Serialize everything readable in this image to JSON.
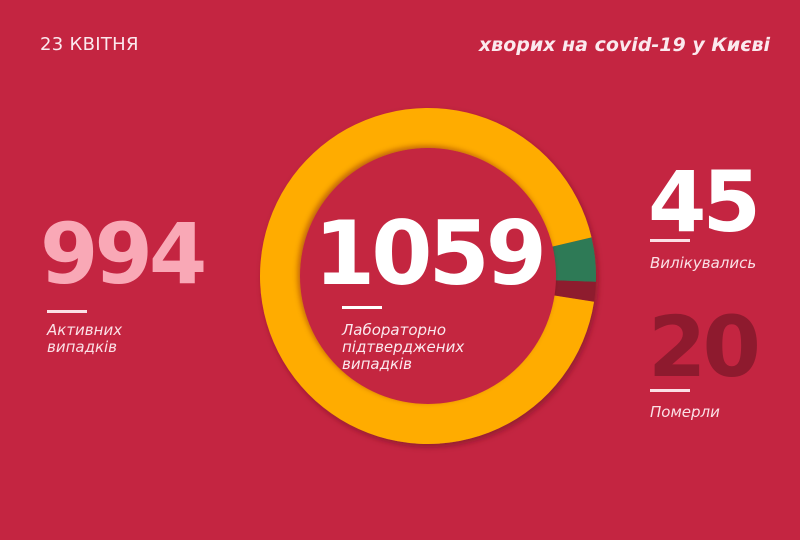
{
  "header": {
    "date": "23 КВІТНЯ",
    "subtitle": "хворих на covid-19 у Києві"
  },
  "stats": {
    "active": {
      "value": "994",
      "label": "Активних випадків",
      "label_lines": [
        "Активних",
        "випадків"
      ]
    },
    "total": {
      "value": "1059",
      "label": "Лабораторно підтверджених випадків",
      "label_lines": [
        "Лабораторно",
        "підтверджених",
        "випадків"
      ]
    },
    "recovered": {
      "value": "45",
      "label": "Вилікувались"
    },
    "deaths": {
      "value": "20",
      "label": "Померли"
    }
  },
  "colors": {
    "background": "#c42541",
    "active": "#ffac00",
    "recovered": "#2e7a57",
    "deaths": "#8e1a2e",
    "active_number": "#f9a8b6"
  },
  "chart_data": {
    "type": "pie",
    "subtype": "donut",
    "title": "хворих на covid-19 у Києві",
    "subtitle": "23 КВІТНЯ",
    "center_label": {
      "value": 1059,
      "text": "Лабораторно підтверджених випадків"
    },
    "categories": [
      "Активних випадків",
      "Вилікувались",
      "Померли"
    ],
    "values": [
      994,
      45,
      20
    ],
    "colors": [
      "#ffac00",
      "#2e7a57",
      "#8e1a2e"
    ],
    "total": 1059,
    "legend": "none (values labeled around the chart)"
  }
}
